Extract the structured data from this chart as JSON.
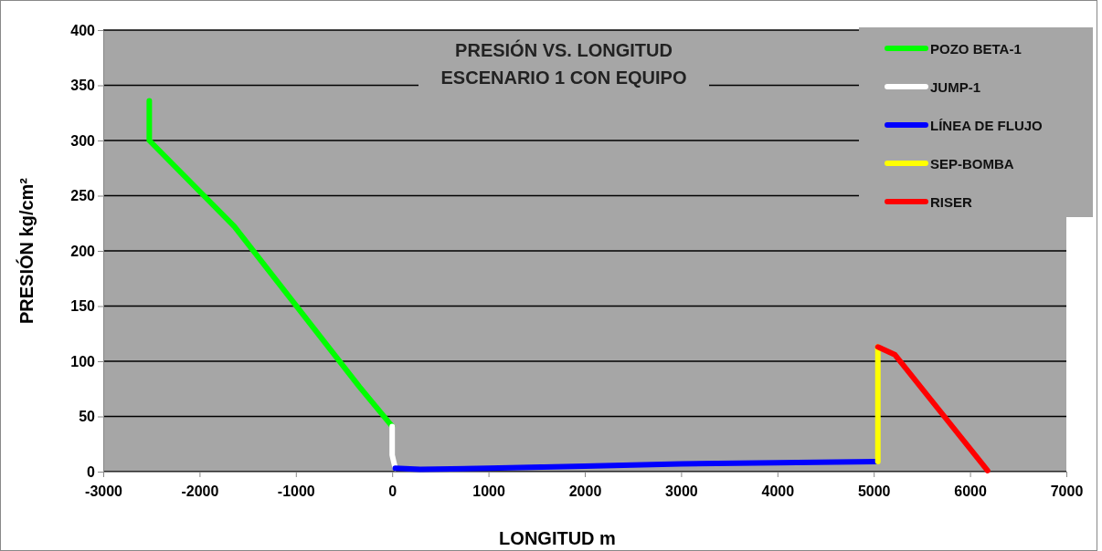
{
  "chart_data": {
    "type": "line",
    "title": "PRESIÓN VS. LONGITUD\nESCENARIO 1 CON EQUIPO",
    "xlabel": "LONGITUD m",
    "ylabel": "PRESIÓN kg/cm²",
    "xlim": [
      -3000,
      7000
    ],
    "xticks": [
      -3000,
      -2000,
      -1000,
      0,
      1000,
      2000,
      3000,
      4000,
      5000,
      6000,
      7000
    ],
    "ylim": [
      0,
      400
    ],
    "yticks": [
      0,
      50,
      100,
      150,
      200,
      250,
      300,
      350,
      400
    ],
    "grid": "y",
    "legend": "top right",
    "marker": "none",
    "line_style": "solid",
    "series": [
      {
        "name": "POZO BETA-1",
        "color": "#00ff00",
        "x": [
          -2522,
          -2522,
          -1638,
          -341,
          0
        ],
        "values": [
          336,
          300,
          222,
          77,
          41
        ]
      },
      {
        "name": "JUMP-1",
        "color": "#ffffff",
        "x": [
          0,
          0,
          32
        ],
        "values": [
          41,
          15,
          3
        ]
      },
      {
        "name": "LÍNEA DE FLUJO",
        "color": "#0000ff",
        "x": [
          32,
          291,
          1000,
          2000,
          3000,
          4000,
          5025
        ],
        "values": [
          3,
          2,
          3,
          5,
          7,
          8,
          9
        ]
      },
      {
        "name": "SEP-BOMBA",
        "color": "#ffff00",
        "x": [
          5043,
          5043
        ],
        "values": [
          9,
          113
        ]
      },
      {
        "name": "RISER",
        "color": "#ff0000",
        "x": [
          5043,
          5218,
          6182
        ],
        "values": [
          113,
          106,
          1
        ]
      }
    ]
  }
}
